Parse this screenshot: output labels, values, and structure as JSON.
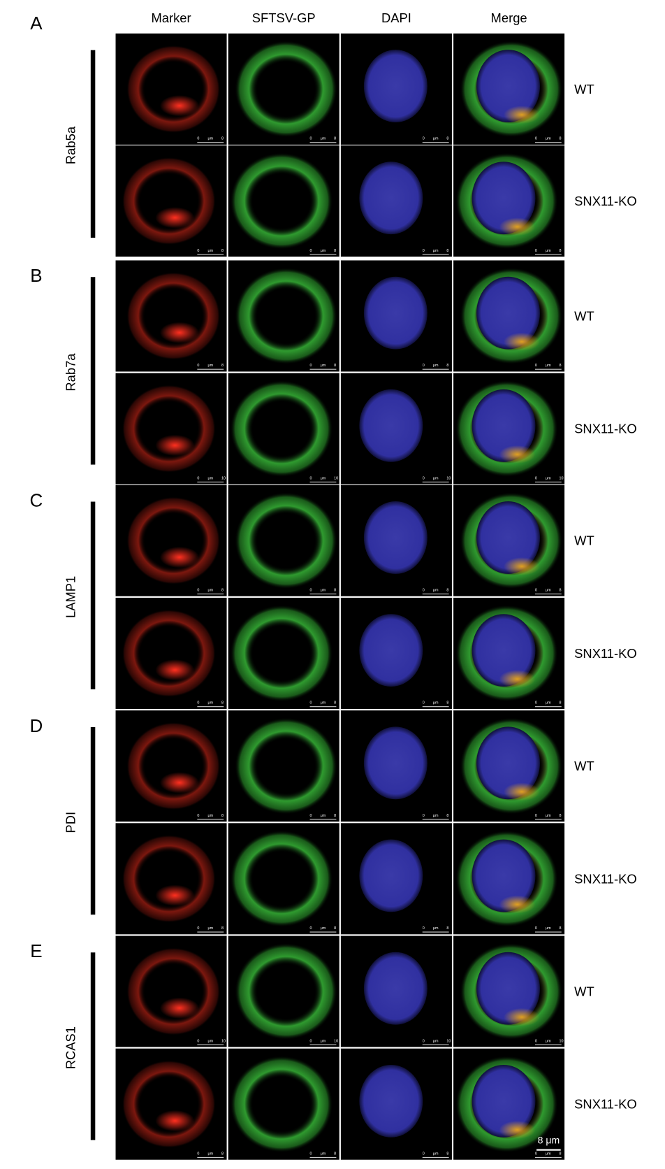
{
  "columns": [
    "Marker",
    "SFTSV-GP",
    "DAPI",
    "Merge"
  ],
  "scale_label": {
    "start": "0",
    "unit": "μm"
  },
  "sections": [
    {
      "letter": "A",
      "marker": "Rab5a",
      "rows": [
        {
          "label": "WT",
          "scale_end": "8"
        },
        {
          "label": "SNX11-KO",
          "scale_end": "8"
        }
      ]
    },
    {
      "letter": "B",
      "marker": "Rab7a",
      "rows": [
        {
          "label": "WT",
          "scale_end": "8"
        },
        {
          "label": "SNX11-KO",
          "scale_end": "10"
        }
      ]
    },
    {
      "letter": "C",
      "marker": "LAMP1",
      "rows": [
        {
          "label": "WT",
          "scale_end": "8"
        },
        {
          "label": "SNX11-KO",
          "scale_end": "8"
        }
      ]
    },
    {
      "letter": "D",
      "marker": "PDI",
      "rows": [
        {
          "label": "WT",
          "scale_end": "8"
        },
        {
          "label": "SNX11-KO",
          "scale_end": "8"
        }
      ]
    },
    {
      "letter": "E",
      "marker": "RCAS1",
      "rows": [
        {
          "label": "WT",
          "scale_end": "10"
        },
        {
          "label": "SNX11-KO",
          "scale_end": "8"
        }
      ]
    }
  ],
  "final_scale_bar": "8 μm"
}
